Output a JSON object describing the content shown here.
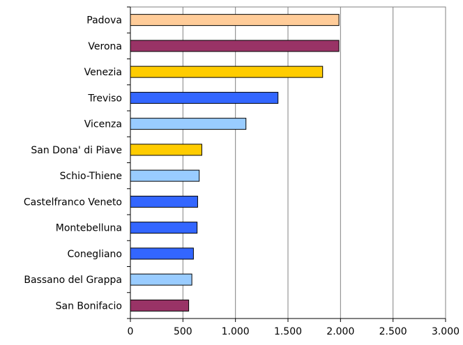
{
  "chart_data": {
    "type": "bar",
    "orientation": "horizontal",
    "categories": [
      "Padova",
      "Verona",
      "Venezia",
      "Treviso",
      "Vicenza",
      "San Dona' di Piave",
      "Schio-Thiene",
      "Castelfranco Veneto",
      "Montebelluna",
      "Conegliano",
      "Bassano del Grappa",
      "San Bonifacio"
    ],
    "values": [
      1985,
      1985,
      1830,
      1405,
      1100,
      680,
      655,
      640,
      635,
      600,
      585,
      555
    ],
    "colors": [
      "#FFCC99",
      "#993366",
      "#FFCC00",
      "#3366FF",
      "#99CCFF",
      "#FFCC00",
      "#99CCFF",
      "#3366FF",
      "#3366FF",
      "#3366FF",
      "#99CCFF",
      "#993366"
    ],
    "xlim": [
      0,
      3000
    ],
    "xticks": [
      0,
      500,
      1000,
      1500,
      2000,
      2500,
      3000
    ],
    "xtick_labels": [
      "0",
      "500",
      "1.000",
      "1.500",
      "2.000",
      "2.500",
      "3.000"
    ],
    "grid": "vertical",
    "title": "",
    "xlabel": "",
    "ylabel": ""
  }
}
